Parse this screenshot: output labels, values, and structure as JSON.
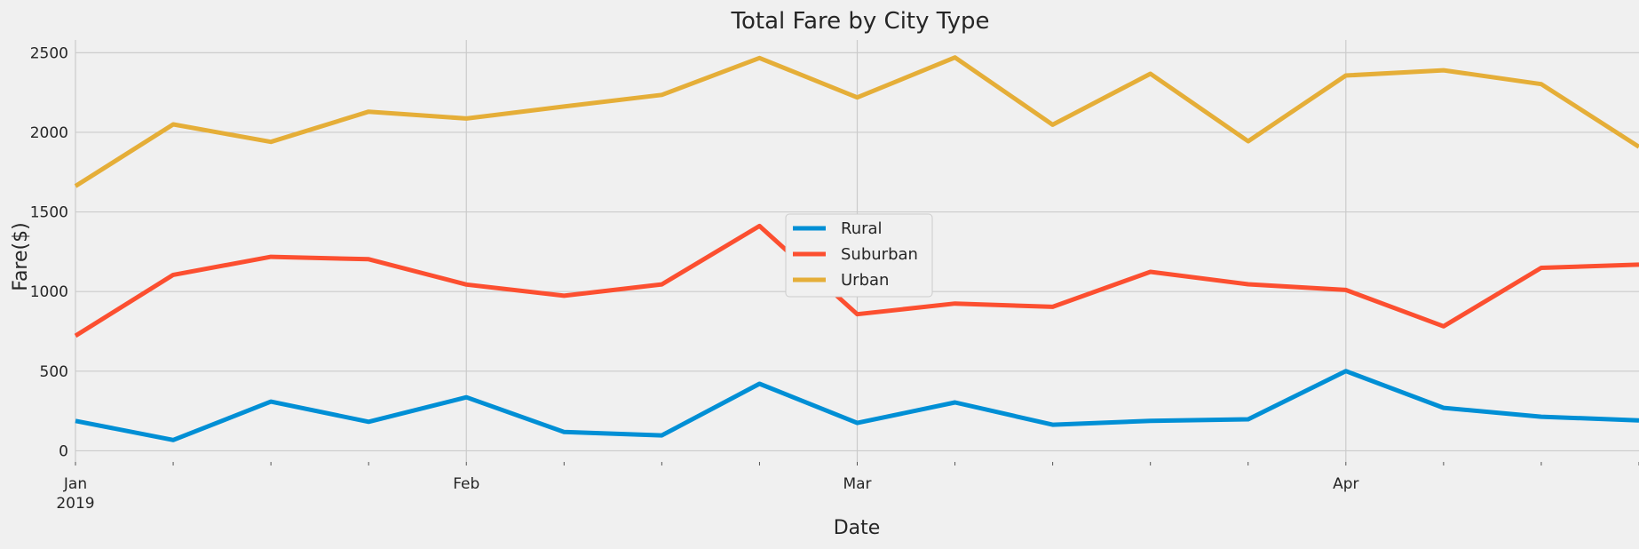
{
  "chart_data": {
    "type": "line",
    "title": "Total Fare by City Type",
    "xlabel": "Date",
    "ylabel": "Fare($)",
    "x": [
      "2019-01-06",
      "2019-01-13",
      "2019-01-20",
      "2019-01-27",
      "2019-02-03",
      "2019-02-10",
      "2019-02-17",
      "2019-02-24",
      "2019-03-03",
      "2019-03-10",
      "2019-03-17",
      "2019-03-24",
      "2019-03-31",
      "2019-04-07",
      "2019-04-14",
      "2019-04-21",
      "2019-04-28"
    ],
    "xlim": [
      "2019-01-06",
      "2019-04-28"
    ],
    "x_ticks": [
      {
        "date": "2019-01-06",
        "label": "Jan",
        "sublabel": "2019"
      },
      {
        "date": "2019-02-03",
        "label": "Feb",
        "sublabel": ""
      },
      {
        "date": "2019-03-03",
        "label": "Mar",
        "sublabel": ""
      },
      {
        "date": "2019-04-07",
        "label": "Apr",
        "sublabel": ""
      }
    ],
    "ylim": [
      -70,
      2580
    ],
    "y_ticks": [
      0,
      500,
      1000,
      1500,
      2000,
      2500
    ],
    "grid": true,
    "legend_position": "center",
    "series": [
      {
        "name": "Rural",
        "color": "#008fd5",
        "values": [
          188,
          68,
          309,
          182,
          336,
          118,
          97,
          421,
          175,
          304,
          164,
          188,
          198,
          501,
          270,
          214,
          191
        ]
      },
      {
        "name": "Suburban",
        "color": "#fc4f30",
        "values": [
          722,
          1105,
          1218,
          1203,
          1044,
          974,
          1045,
          1412,
          858,
          925,
          904,
          1124,
          1046,
          1010,
          782,
          1149,
          1169
        ]
      },
      {
        "name": "Urban",
        "color": "#e5ae38",
        "values": [
          1662,
          2050,
          1940,
          2130,
          2087,
          2162,
          2235,
          2467,
          2219,
          2470,
          2048,
          2368,
          1944,
          2357,
          2390,
          2303,
          1909
        ]
      }
    ]
  }
}
